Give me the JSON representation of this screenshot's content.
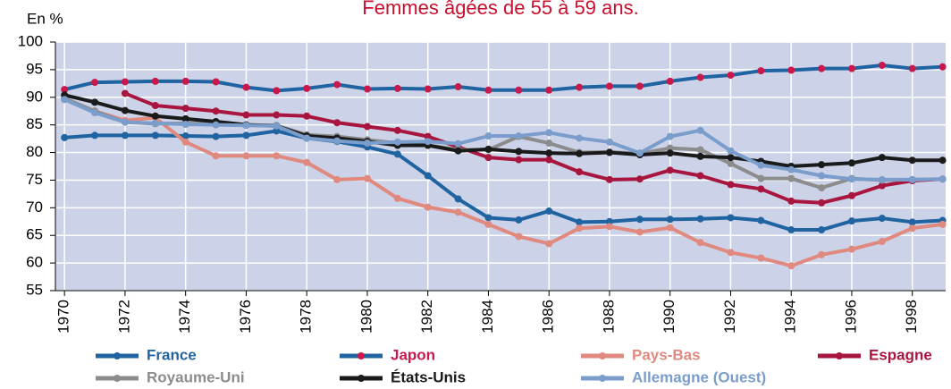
{
  "chart_data": {
    "type": "line",
    "title": "Femmes âgées de 55 à 59 ans.",
    "y_label": "En %",
    "x": [
      1970,
      1971,
      1972,
      1973,
      1974,
      1975,
      1976,
      1977,
      1978,
      1979,
      1980,
      1981,
      1982,
      1983,
      1984,
      1985,
      1986,
      1987,
      1988,
      1989,
      1990,
      1991,
      1992,
      1993,
      1994,
      1995,
      1996,
      1997,
      1998,
      1999
    ],
    "xlim": [
      1969.7,
      1999.1
    ],
    "xticks": [
      1970,
      1972,
      1974,
      1976,
      1978,
      1980,
      1982,
      1984,
      1986,
      1988,
      1990,
      1992,
      1994,
      1996,
      1998
    ],
    "ylim": [
      55,
      100
    ],
    "yticks": [
      55,
      60,
      65,
      70,
      75,
      80,
      85,
      90,
      95,
      100
    ],
    "grid": true,
    "series": [
      {
        "name": "France",
        "color": "#1f64a0",
        "values": [
          82.7,
          83.1,
          83.1,
          83.1,
          83.0,
          82.9,
          83.1,
          83.9,
          82.6,
          82.0,
          81.0,
          79.7,
          75.8,
          71.6,
          68.2,
          67.8,
          69.4,
          67.4,
          67.5,
          67.9,
          67.9,
          68.0,
          68.2,
          67.7,
          66.0,
          66.0,
          67.6,
          68.1,
          67.4,
          67.7
        ]
      },
      {
        "name": "Japon",
        "color": "#1f64a0",
        "marker_color": "#c8184c",
        "values": [
          91.4,
          92.7,
          92.8,
          92.9,
          92.9,
          92.8,
          91.8,
          91.2,
          91.6,
          92.3,
          91.5,
          91.6,
          91.5,
          91.9,
          91.3,
          91.3,
          91.3,
          91.8,
          92.0,
          92.0,
          92.9,
          93.6,
          94.0,
          94.8,
          94.9,
          95.2,
          95.2,
          95.8,
          95.2,
          95.5
        ]
      },
      {
        "name": "Pays-Bas",
        "color": "#e0897f",
        "values": [
          89.6,
          87.5,
          85.8,
          86.3,
          81.9,
          79.4,
          79.4,
          79.4,
          78.2,
          75.1,
          75.3,
          71.7,
          70.1,
          69.2,
          67.0,
          64.8,
          63.5,
          66.3,
          66.6,
          65.6,
          66.4,
          63.7,
          61.9,
          60.9,
          59.5,
          61.5,
          62.5,
          63.9,
          66.3,
          67.0
        ]
      },
      {
        "name": "Espagne",
        "color": "#a8163f",
        "values": [
          null,
          null,
          90.7,
          88.5,
          88.0,
          87.5,
          86.8,
          86.8,
          86.6,
          85.4,
          84.7,
          84.0,
          82.9,
          81.0,
          79.1,
          78.7,
          78.7,
          76.5,
          75.1,
          75.2,
          76.8,
          75.8,
          74.2,
          73.4,
          71.2,
          70.9,
          72.2,
          74.0,
          74.9,
          75.2
        ]
      },
      {
        "name": "Royaume-Uni",
        "color": "#8c8c8c",
        "values": [
          89.8,
          87.5,
          85.5,
          85.2,
          85.3,
          85.1,
          85.0,
          84.9,
          83.2,
          82.9,
          82.3,
          81.7,
          81.3,
          80.5,
          80.5,
          82.9,
          81.7,
          80.0,
          80.1,
          79.8,
          80.8,
          80.5,
          78.0,
          75.3,
          75.3,
          73.6,
          75.3,
          75.0,
          75.1,
          75.2
        ]
      },
      {
        "name": "États-Unis",
        "color": "#1a1a1a",
        "values": [
          90.4,
          89.1,
          87.6,
          86.6,
          86.1,
          85.6,
          85.0,
          84.8,
          83.0,
          82.6,
          82.0,
          81.3,
          81.3,
          80.3,
          80.6,
          80.2,
          79.9,
          79.8,
          80.0,
          79.6,
          79.9,
          79.3,
          79.1,
          78.4,
          77.5,
          77.8,
          78.1,
          79.1,
          78.6,
          78.6
        ]
      },
      {
        "name": "Allemagne (Ouest)",
        "color": "#7b9dcb",
        "values": [
          89.6,
          87.2,
          85.5,
          85.3,
          85.1,
          85.0,
          84.9,
          84.8,
          82.6,
          82.1,
          81.7,
          81.9,
          82.0,
          81.6,
          83.0,
          83.0,
          83.6,
          82.6,
          81.9,
          79.9,
          82.9,
          84.0,
          80.3,
          77.7,
          76.9,
          75.8,
          75.2,
          75.1,
          75.1,
          75.2
        ]
      }
    ]
  }
}
